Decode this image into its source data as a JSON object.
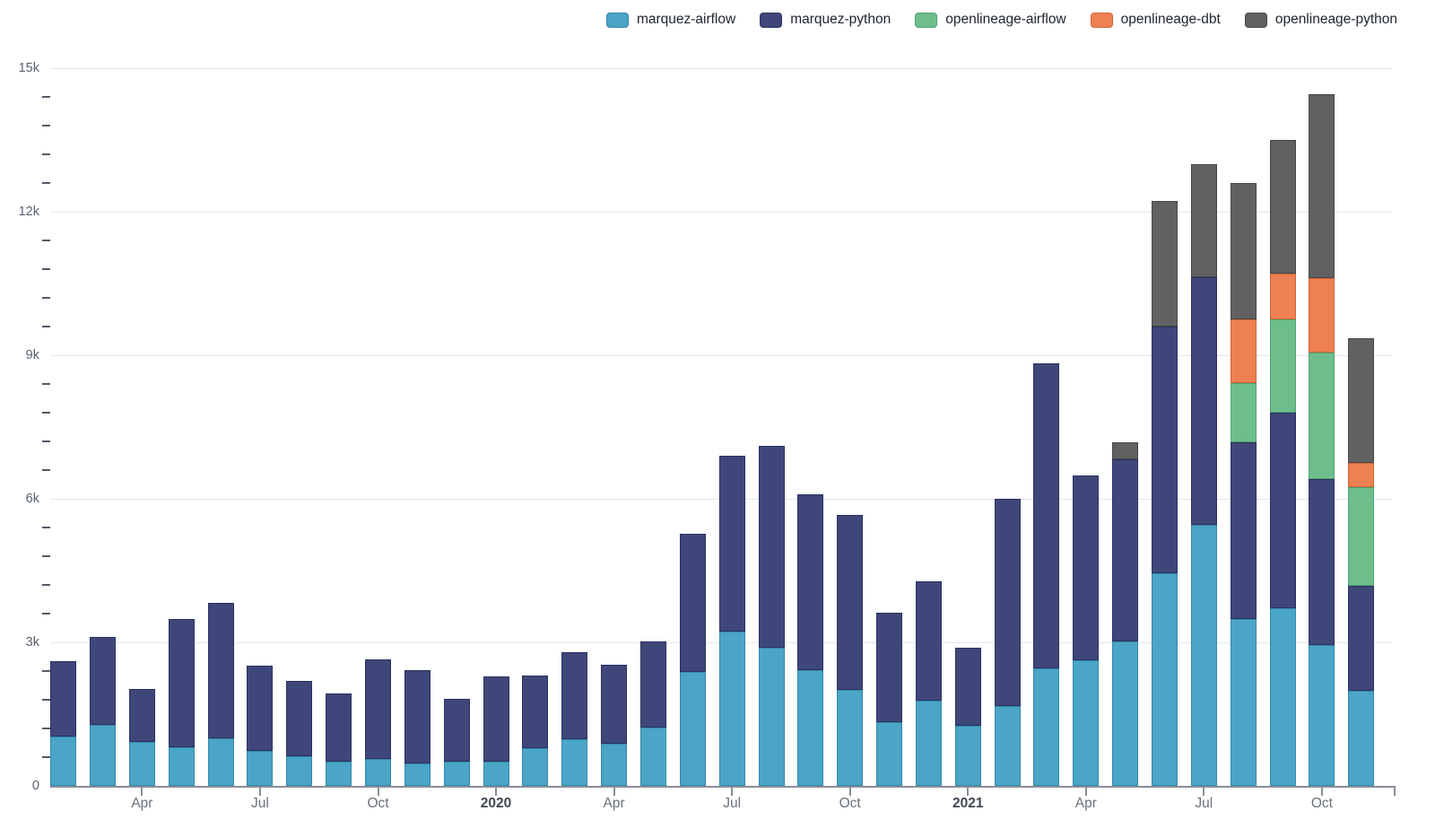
{
  "legend": {
    "items": [
      {
        "label": "marquez-airflow",
        "color": "#4AA5C6",
        "border": "#3587AA"
      },
      {
        "label": "marquez-python",
        "color": "#3F477A",
        "border": "#2B3160"
      },
      {
        "label": "openlineage-airflow",
        "color": "#6EBE8C",
        "border": "#52A272"
      },
      {
        "label": "openlineage-dbt",
        "color": "#EE8152",
        "border": "#D06338"
      },
      {
        "label": "openlineage-python",
        "color": "#616161",
        "border": "#474747"
      }
    ]
  },
  "y_axis": {
    "tick_labels": [
      "0",
      "3k",
      "6k",
      "9k",
      "12k",
      "15k"
    ],
    "tick_values": [
      0,
      3000,
      6000,
      9000,
      12000,
      15000
    ],
    "minor_step": 600,
    "max": 15000
  },
  "x_axis": {
    "ticks": [
      {
        "label": "Apr",
        "month_index": 2,
        "bold": false
      },
      {
        "label": "Jul",
        "month_index": 5,
        "bold": false
      },
      {
        "label": "Oct",
        "month_index": 8,
        "bold": false
      },
      {
        "label": "2020",
        "month_index": 11,
        "bold": true
      },
      {
        "label": "Apr",
        "month_index": 14,
        "bold": false
      },
      {
        "label": "Jul",
        "month_index": 17,
        "bold": false
      },
      {
        "label": "Oct",
        "month_index": 20,
        "bold": false
      },
      {
        "label": "2021",
        "month_index": 23,
        "bold": true
      },
      {
        "label": "Apr",
        "month_index": 26,
        "bold": false
      },
      {
        "label": "Jul",
        "month_index": 29,
        "bold": false
      },
      {
        "label": "Oct",
        "month_index": 32,
        "bold": false
      }
    ]
  },
  "chart_data": {
    "type": "bar",
    "stacked": true,
    "grid": "horizontal-major",
    "legend_position": "top-right",
    "ylim": [
      0,
      15000
    ],
    "x_months": [
      "Feb 2019",
      "Mar 2019",
      "Apr 2019",
      "May 2019",
      "Jun 2019",
      "Jul 2019",
      "Aug 2019",
      "Sep 2019",
      "Oct 2019",
      "Nov 2019",
      "Dec 2019",
      "Jan 2020",
      "Feb 2020",
      "Mar 2020",
      "Apr 2020",
      "May 2020",
      "Jun 2020",
      "Jul 2020",
      "Aug 2020",
      "Sep 2020",
      "Oct 2020",
      "Nov 2020",
      "Dec 2020",
      "Jan 2021",
      "Feb 2021",
      "Mar 2021",
      "Apr 2021",
      "May 2021",
      "Jun 2021",
      "Jul 2021",
      "Aug 2021",
      "Sep 2021",
      "Oct 2021",
      "Nov 2021"
    ],
    "series": [
      {
        "name": "marquez-airflow",
        "color": "#4AA5C6",
        "border_color": "#3587AA",
        "values": [
          1030,
          1280,
          910,
          810,
          990,
          730,
          620,
          510,
          560,
          470,
          500,
          510,
          780,
          970,
          890,
          1220,
          2390,
          3220,
          2890,
          2410,
          2010,
          1340,
          1790,
          1250,
          1670,
          2460,
          2630,
          3020,
          4440,
          5460,
          3480,
          3710,
          2940,
          1990
        ]
      },
      {
        "name": "marquez-python",
        "color": "#3F477A",
        "border_color": "#2B3160",
        "values": [
          1570,
          1830,
          1120,
          2670,
          2830,
          1780,
          1570,
          1430,
          2080,
          1940,
          1320,
          1780,
          1530,
          1820,
          1650,
          1800,
          2870,
          3680,
          4220,
          3690,
          3650,
          2270,
          2490,
          1630,
          4330,
          6380,
          3850,
          3810,
          5160,
          5170,
          3700,
          4090,
          3480,
          2190
        ]
      },
      {
        "name": "openlineage-airflow",
        "color": "#6EBE8C",
        "border_color": "#52A272",
        "values": [
          0,
          0,
          0,
          0,
          0,
          0,
          0,
          0,
          0,
          0,
          0,
          0,
          0,
          0,
          0,
          0,
          0,
          0,
          0,
          0,
          0,
          0,
          0,
          0,
          0,
          0,
          0,
          0,
          0,
          0,
          1240,
          1950,
          2640,
          2060
        ]
      },
      {
        "name": "openlineage-dbt",
        "color": "#EE8152",
        "border_color": "#D06338",
        "values": [
          0,
          0,
          0,
          0,
          0,
          0,
          0,
          0,
          0,
          0,
          0,
          0,
          0,
          0,
          0,
          0,
          0,
          0,
          0,
          0,
          0,
          0,
          0,
          0,
          0,
          0,
          0,
          0,
          0,
          0,
          1330,
          960,
          1560,
          510
        ]
      },
      {
        "name": "openlineage-python",
        "color": "#616161",
        "border_color": "#474747",
        "values": [
          0,
          0,
          0,
          0,
          0,
          0,
          0,
          0,
          0,
          0,
          0,
          0,
          0,
          0,
          0,
          0,
          0,
          0,
          0,
          0,
          0,
          0,
          0,
          0,
          0,
          0,
          0,
          360,
          2630,
          2360,
          2850,
          2790,
          3840,
          2610
        ]
      }
    ]
  },
  "colors": {
    "background": "#FFFFFF",
    "gridline": "#E2E6F0",
    "axis": "#888E98",
    "minor_tick": "#525B66",
    "y_label": "#59616C",
    "x_label": "#6A717A",
    "year_label": "#3E4650",
    "legend_text": "#20262E"
  }
}
